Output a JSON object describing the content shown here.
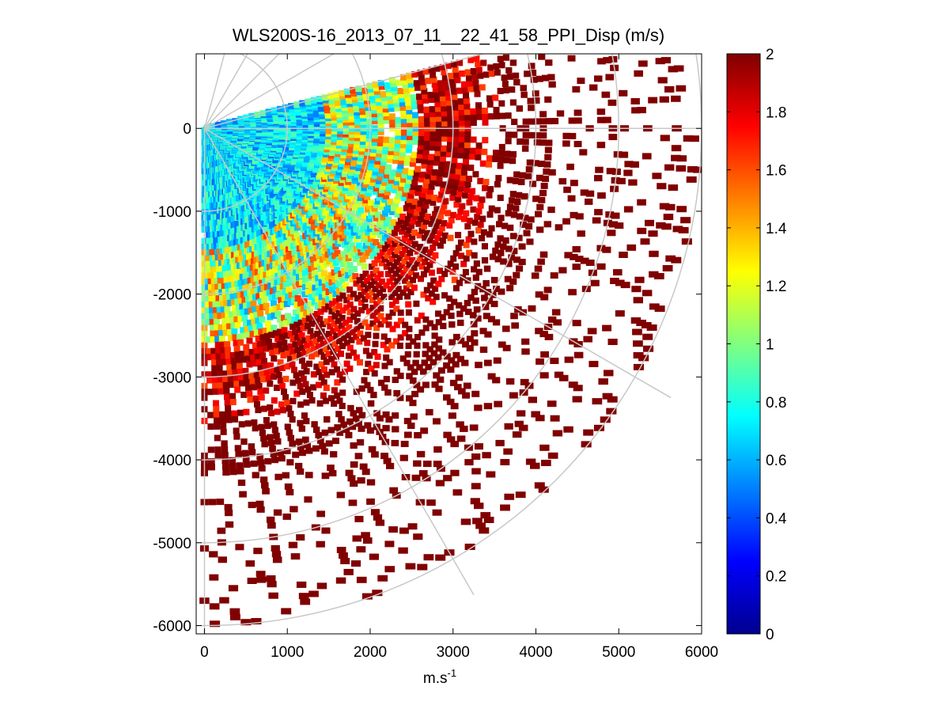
{
  "chart_data": {
    "type": "heatmap",
    "title": "WLS200S-16_2013_07_11__22_41_58_PPI_Disp (m/s)",
    "xlabel_base": "m.s",
    "xlabel_exponent": "-1",
    "ylabel": "",
    "xlim": [
      -100,
      6000
    ],
    "ylim": [
      -6100,
      900
    ],
    "x_ticks": [
      0,
      1000,
      2000,
      3000,
      4000,
      5000,
      6000
    ],
    "x_tick_labels": [
      "0",
      "1000",
      "2000",
      "3000",
      "4000",
      "5000",
      "6000"
    ],
    "y_ticks": [
      0,
      -1000,
      -2000,
      -3000,
      -4000,
      -5000,
      -6000
    ],
    "y_tick_labels": [
      "0",
      "-1000",
      "-2000",
      "-3000",
      "-4000",
      "-5000",
      "-6000"
    ],
    "polar_grid": {
      "origin": [
        0,
        0
      ],
      "ring_radii": [
        1000,
        2000,
        3000,
        4000,
        5000,
        6000
      ],
      "spoke_angles_deg": [
        0,
        15,
        30,
        45,
        60,
        75,
        -30,
        -60,
        -90
      ]
    },
    "scan": {
      "azimuth_range_deg": [
        -90,
        15
      ],
      "range_m": [
        0,
        6000
      ],
      "value_units": "m/s"
    },
    "data_summary": [
      {
        "range_m": [
          0,
          1500
        ],
        "typical_value": 0.7
      },
      {
        "range_m": [
          1500,
          2600
        ],
        "typical_value": 1.1
      },
      {
        "range_m": [
          2600,
          3600
        ],
        "typical_value": 1.9
      },
      {
        "range_m": [
          3600,
          6000
        ],
        "typical_value": 2.0
      }
    ],
    "colorbar": {
      "colormap": "jet",
      "vmin": 0,
      "vmax": 2,
      "ticks": [
        0,
        0.2,
        0.4,
        0.6,
        0.8,
        1,
        1.2,
        1.4,
        1.6,
        1.8,
        2
      ],
      "tick_labels": [
        "0",
        "0.2",
        "0.4",
        "0.6",
        "0.8",
        "1",
        "1.2",
        "1.4",
        "1.6",
        "1.8",
        "2"
      ]
    },
    "grid": true,
    "legend": "none"
  }
}
